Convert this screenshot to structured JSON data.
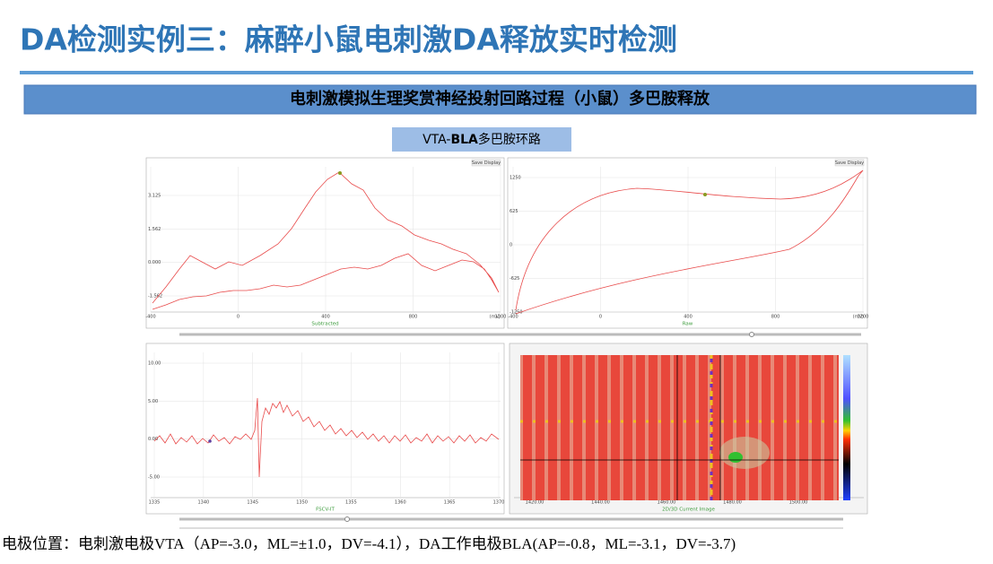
{
  "title": "DA检测实例三：麻醉小鼠电刺激DA释放实时检测",
  "banner": "电刺激模拟生理奖赏神经投射回路过程（小鼠）多巴胺释放",
  "circuit_label": {
    "prefix": "VTA-",
    "bold": "BLA",
    "suffix": "多巴胺环路"
  },
  "panels": [
    {
      "caption": "Subtracted",
      "button": "Save Display",
      "y_ticks": [
        "3.125",
        "1.562",
        "0.000",
        "-1.562"
      ],
      "x_ticks": [
        "-400",
        "0",
        "400",
        "800",
        "1200"
      ],
      "unit": "(mV)"
    },
    {
      "caption": "Raw",
      "button": "Save Display",
      "y_ticks": [
        "1250",
        "625",
        "0",
        "-625",
        "-1250"
      ],
      "x_ticks": [
        "-400",
        "0",
        "400",
        "800",
        "1200"
      ],
      "unit": "(mV)"
    },
    {
      "caption": "FSCV-IT",
      "y_ticks": [
        "10.00",
        "5.00",
        "0.00",
        "-5.00"
      ],
      "x_ticks": [
        "1335",
        "1340",
        "1345",
        "1350",
        "1355",
        "1360",
        "1365",
        "1370"
      ]
    },
    {
      "caption": "2D/3D Current Image",
      "x_ticks": [
        "1420.00",
        "1440.00",
        "1460.00",
        "1480.00",
        "1500.00"
      ]
    }
  ],
  "footer": "电极位置：电刺激电极VTA（AP=-3.0，ML=±1.0，DV=-4.1），DA工作电极BLA(AP=-0.8，ML=-3.1，DV=-3.7)"
}
